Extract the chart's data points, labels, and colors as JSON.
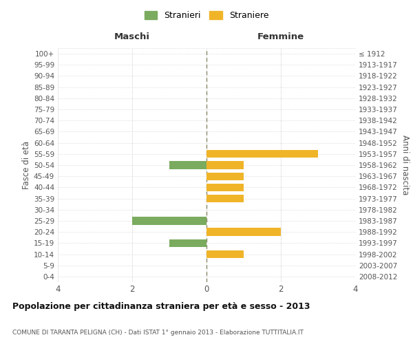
{
  "age_groups": [
    "100+",
    "95-99",
    "90-94",
    "85-89",
    "80-84",
    "75-79",
    "70-74",
    "65-69",
    "60-64",
    "55-59",
    "50-54",
    "45-49",
    "40-44",
    "35-39",
    "30-34",
    "25-29",
    "20-24",
    "15-19",
    "10-14",
    "5-9",
    "0-4"
  ],
  "birth_years": [
    "≤ 1912",
    "1913-1917",
    "1918-1922",
    "1923-1927",
    "1928-1932",
    "1933-1937",
    "1938-1942",
    "1943-1947",
    "1948-1952",
    "1953-1957",
    "1958-1962",
    "1963-1967",
    "1968-1972",
    "1973-1977",
    "1978-1982",
    "1983-1987",
    "1988-1992",
    "1993-1997",
    "1998-2002",
    "2003-2007",
    "2008-2012"
  ],
  "stranieri": [
    0,
    0,
    0,
    0,
    0,
    0,
    0,
    0,
    0,
    0,
    -1,
    0,
    0,
    0,
    0,
    -2,
    0,
    -1,
    0,
    0,
    0
  ],
  "straniere": [
    0,
    0,
    0,
    0,
    0,
    0,
    0,
    0,
    0,
    3,
    1,
    1,
    1,
    1,
    0,
    0,
    2,
    0,
    1,
    0,
    0
  ],
  "color_stranieri": "#7aab5e",
  "color_straniere": "#f0b429",
  "title_main": "Popolazione per cittadinanza straniera per età e sesso - 2013",
  "title_sub": "COMUNE DI TARANTA PELIGNA (CH) - Dati ISTAT 1° gennaio 2013 - Elaborazione TUTTITALIA.IT",
  "xlabel_left": "Maschi",
  "xlabel_right": "Femmine",
  "ylabel_left": "Fasce di età",
  "ylabel_right": "Anni di nascita",
  "legend_stranieri": "Stranieri",
  "legend_straniere": "Straniere",
  "xlim": [
    -4,
    4
  ],
  "xticks": [
    -4,
    -2,
    0,
    2,
    4
  ],
  "xticklabels": [
    "4",
    "2",
    "0",
    "2",
    "4"
  ],
  "background_color": "#ffffff",
  "grid_color": "#d0d0d0",
  "center_line_color": "#888866"
}
